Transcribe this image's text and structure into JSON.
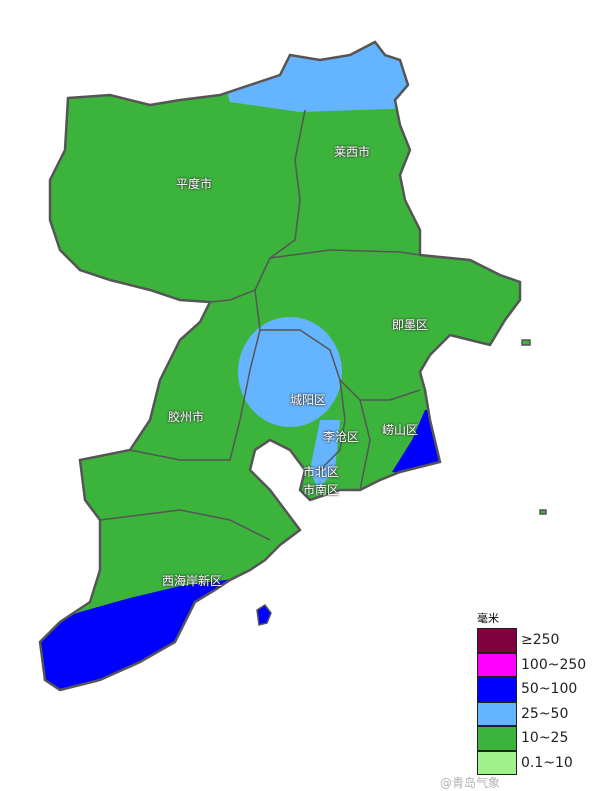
{
  "map": {
    "districts": [
      "平度市",
      "莱西市",
      "即墨区",
      "胶州市",
      "城阳区",
      "李沧区",
      "崂山区",
      "市北区",
      "市南区",
      "西海岸新区"
    ]
  },
  "legend": {
    "unit": "毫米",
    "items": [
      {
        "label": "≥250",
        "color": "#800040"
      },
      {
        "label": "100~250",
        "color": "#ff00ff"
      },
      {
        "label": "50~100",
        "color": "#0000ff"
      },
      {
        "label": "25~50",
        "color": "#64b4ff"
      },
      {
        "label": "10~25",
        "color": "#3cb43c"
      },
      {
        "label": "0.1~10",
        "color": "#a0f08c"
      }
    ]
  },
  "watermark": "@青岛气象"
}
